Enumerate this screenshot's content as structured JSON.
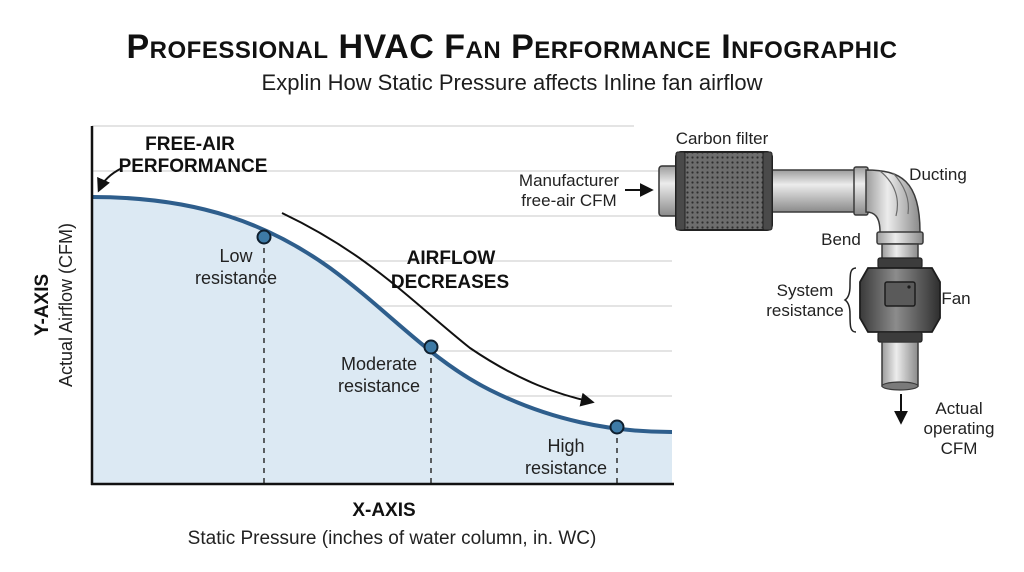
{
  "title": "Professional HVAC Fan Performance Infographic",
  "subtitle": "Explin How Static Pressure affects Inline fan airflow",
  "chart": {
    "y_axis_title": "Y-AXIS",
    "y_axis_label": "Actual Airflow (CFM)",
    "x_axis_title": "X-AXIS",
    "x_axis_label": "Static Pressure (inches of water column, in. WC)",
    "free_air_line1": "FREE-AIR",
    "free_air_line2": "PERFORMANCE",
    "trend_line1": "AIRFLOW",
    "trend_line2": "DECREASES",
    "points": [
      {
        "line1": "Low",
        "line2": "resistance"
      },
      {
        "line1": "Moderate",
        "line2": "resistance"
      },
      {
        "line1": "High",
        "line2": "resistance"
      }
    ],
    "curve_color": "#2e5e8c",
    "fill_color": "#dce9f3"
  },
  "diagram": {
    "carbon_filter": "Carbon filter",
    "ducting": "Ducting",
    "manufacturer_line1": "Manufacturer",
    "manufacturer_line2": "free-air CFM",
    "bend": "Bend",
    "system_line1": "System",
    "system_line2": "resistance",
    "fan": "Fan",
    "actual_line1": "Actual",
    "actual_line2": "operating",
    "actual_line3": "CFM"
  }
}
